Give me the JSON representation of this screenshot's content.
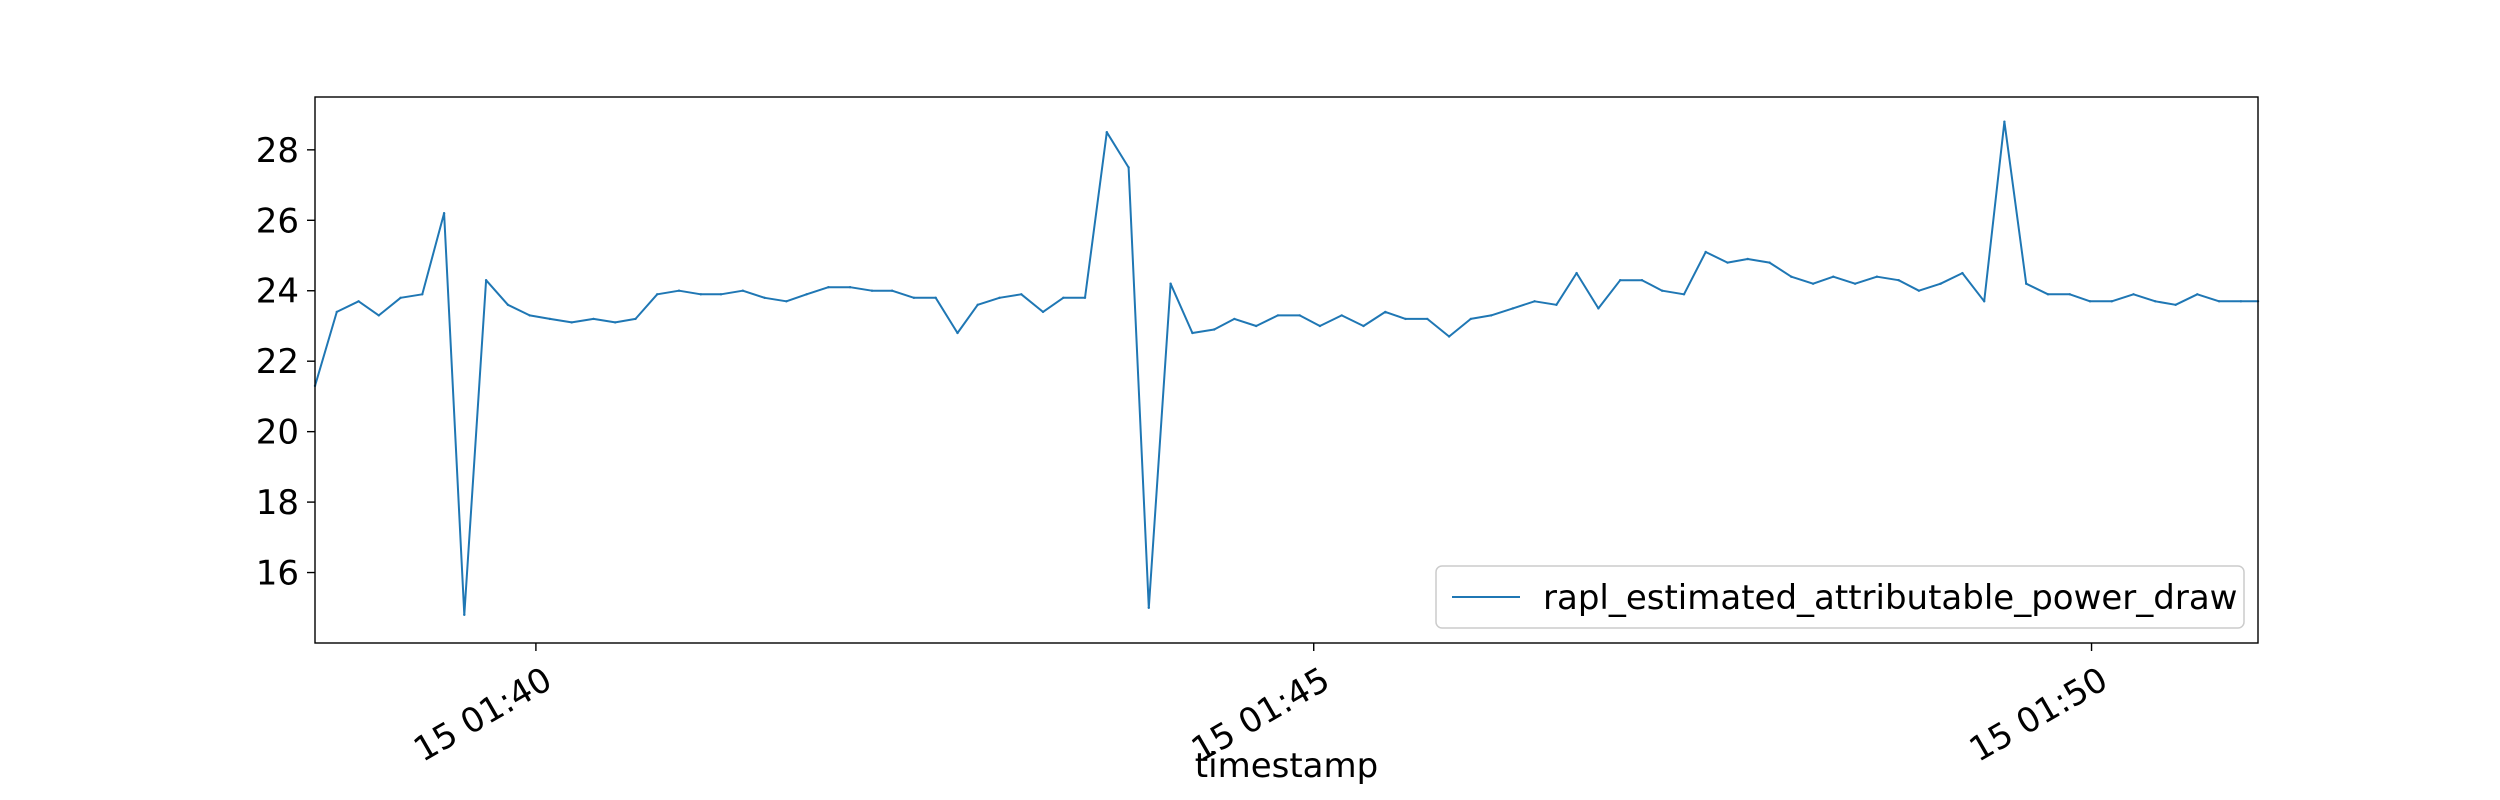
{
  "chart_data": {
    "type": "line",
    "title": "",
    "xlabel": "timestamp",
    "ylabel": "",
    "x_tick_labels": [
      "15 01:40",
      "15 01:45",
      "15 01:50"
    ],
    "x_ticks_minutes": [
      40,
      45,
      50
    ],
    "x_range_minutes": [
      38.58,
      51.07
    ],
    "y_ticks": [
      16,
      18,
      20,
      22,
      24,
      26,
      28
    ],
    "ylim": [
      14.0,
      29.5
    ],
    "grid": false,
    "legend_position": "lower-right",
    "series": [
      {
        "name": "rapl_estimated_attributable_power_draw",
        "color": "#1f77b4",
        "x_minutes": [
          38.58,
          38.72,
          38.86,
          38.99,
          39.13,
          39.27,
          39.41,
          39.54,
          39.68,
          39.82,
          39.96,
          40.09,
          40.23,
          40.37,
          40.51,
          40.64,
          40.78,
          40.92,
          41.06,
          41.19,
          41.33,
          41.47,
          41.61,
          41.74,
          41.88,
          42.02,
          42.16,
          42.29,
          42.43,
          42.57,
          42.71,
          42.84,
          42.98,
          43.12,
          43.26,
          43.39,
          43.53,
          43.67,
          43.81,
          43.94,
          44.08,
          44.22,
          44.36,
          44.49,
          44.63,
          44.77,
          44.91,
          45.04,
          45.18,
          45.32,
          45.46,
          45.59,
          45.73,
          45.87,
          46.01,
          46.14,
          46.28,
          46.42,
          46.56,
          46.69,
          46.83,
          46.97,
          47.11,
          47.24,
          47.38,
          47.52,
          47.66,
          47.79,
          47.93,
          48.07,
          48.21,
          48.34,
          48.48,
          48.62,
          48.76,
          48.89,
          49.03,
          49.17,
          49.31,
          49.44,
          49.58,
          49.72,
          49.86,
          49.99,
          50.13,
          50.27,
          50.41,
          50.54,
          50.68,
          50.82,
          50.96,
          51.07
        ],
        "values": [
          21.3,
          23.4,
          23.7,
          23.3,
          23.8,
          23.9,
          26.2,
          14.8,
          24.3,
          23.6,
          23.3,
          23.2,
          23.1,
          23.2,
          23.1,
          23.2,
          23.9,
          24.0,
          23.9,
          23.9,
          24.0,
          23.8,
          23.7,
          23.9,
          24.1,
          24.1,
          24.0,
          24.0,
          23.8,
          23.8,
          22.8,
          23.6,
          23.8,
          23.9,
          23.4,
          23.8,
          23.8,
          28.5,
          27.5,
          15.0,
          24.2,
          22.8,
          22.9,
          23.2,
          23.0,
          23.3,
          23.3,
          23.0,
          23.3,
          23.0,
          23.4,
          23.2,
          23.2,
          22.7,
          23.2,
          23.3,
          23.5,
          23.7,
          23.6,
          24.5,
          23.5,
          24.3,
          24.3,
          24.0,
          23.9,
          25.1,
          24.8,
          24.9,
          24.8,
          24.4,
          24.2,
          24.4,
          24.2,
          24.4,
          24.3,
          24.0,
          24.2,
          24.5,
          23.7,
          28.8,
          24.2,
          23.9,
          23.9,
          23.7,
          23.7,
          23.9,
          23.7,
          23.6,
          23.9,
          23.7,
          23.7,
          23.7
        ]
      }
    ]
  }
}
